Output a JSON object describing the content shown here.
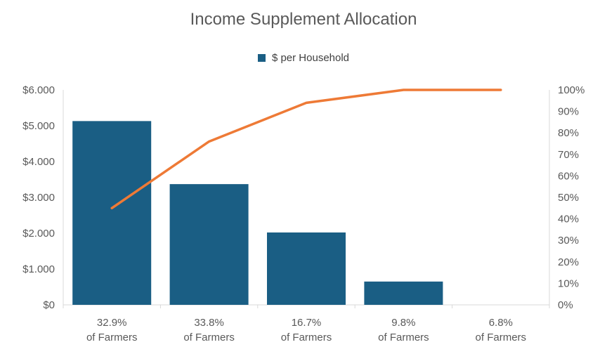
{
  "chart_data": {
    "type": "bar",
    "title": "Income Supplement Allocation",
    "categories": [
      [
        "32.9%",
        "of Farmers"
      ],
      [
        "33.8%",
        "of Farmers"
      ],
      [
        "16.7%",
        "of Farmers"
      ],
      [
        "9.8%",
        "of Farmers"
      ],
      [
        "6.8%",
        "of Farmers"
      ]
    ],
    "series": [
      {
        "name": "$ per Household",
        "type": "bar",
        "axis": "left",
        "values": [
          5130,
          3370,
          2020,
          650,
          0
        ]
      },
      {
        "type": "line",
        "axis": "right",
        "values": [
          0.45,
          0.76,
          0.94,
          1.0,
          1.0
        ]
      }
    ],
    "y_left": {
      "ylim": [
        0,
        6000
      ],
      "tick_labels": [
        "$0",
        "$1.000",
        "$2.000",
        "$3.000",
        "$4.000",
        "$5.000",
        "$6.000"
      ]
    },
    "y_right": {
      "ylim": [
        0,
        1
      ],
      "tick_labels": [
        "0%",
        "10%",
        "20%",
        "30%",
        "40%",
        "50%",
        "60%",
        "70%",
        "80%",
        "90%",
        "100%"
      ]
    },
    "legend_position": "top",
    "grid": false,
    "colors": {
      "bar": "#1a5e84",
      "line": "#ee7a36",
      "axis": "#d9d9d9",
      "text": "#595959"
    }
  }
}
